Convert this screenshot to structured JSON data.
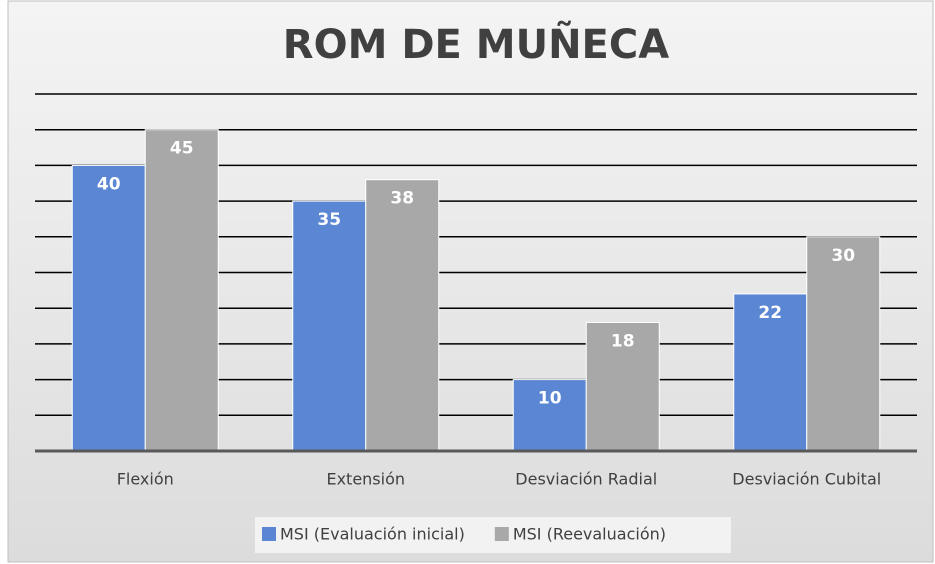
{
  "chart_data": {
    "type": "bar",
    "title": "ROM DE MUÑECA",
    "categories": [
      "Flexión",
      "Extensión",
      "Desviación Radial",
      "Desviación Cubital"
    ],
    "series": [
      {
        "name": "MSI (Evaluación inicial)",
        "color": "#5a86d3",
        "values": [
          40,
          35,
          10,
          22
        ]
      },
      {
        "name": "MSI (Reevaluación)",
        "color": "#a8a8a8",
        "values": [
          45,
          38,
          18,
          30
        ]
      }
    ],
    "ylim": [
      0,
      50
    ],
    "yticks": [
      0,
      5,
      10,
      15,
      20,
      25,
      30,
      35,
      40,
      45,
      50
    ],
    "grid": true,
    "legend": "bottom"
  }
}
